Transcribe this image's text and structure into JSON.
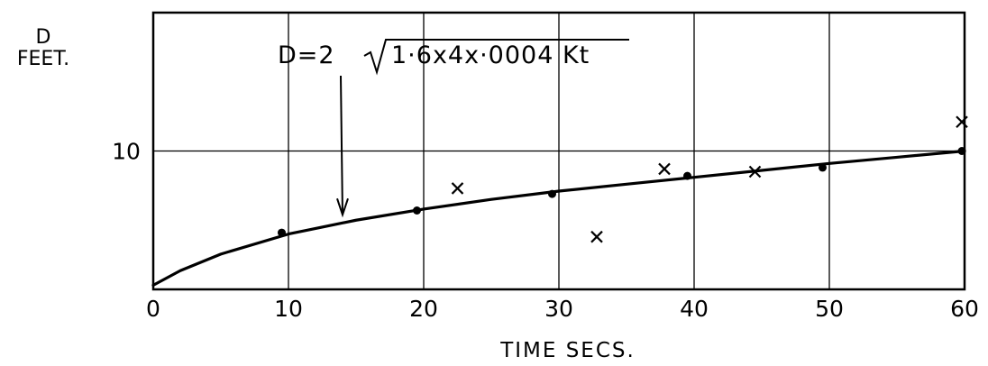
{
  "chart_data": {
    "type": "scatter",
    "xlabel": "TIME SECS.",
    "ylabel": [
      "D",
      "FEET."
    ],
    "xlim": [
      0,
      60
    ],
    "ylim": [
      0,
      20
    ],
    "x_ticks": [
      0,
      10,
      20,
      30,
      40,
      50,
      60
    ],
    "x_tick_labels": [
      "0",
      "10",
      "20",
      "30",
      "40",
      "50",
      "60"
    ],
    "y_ticks": [
      0,
      10
    ],
    "y_tick_labels": [
      "0",
      "10"
    ],
    "grid": true,
    "annotation": {
      "text_prefix": "D=2",
      "text_radicand": "1·6x4x·0004 Kt",
      "arrow_x": 14,
      "arrow_y": 5
    },
    "series": [
      {
        "marker": "dot",
        "x": [
          9.5,
          19.5,
          29.5,
          39.5,
          49.5,
          59.8
        ],
        "y": [
          4.1,
          5.7,
          6.9,
          8.2,
          8.8,
          10.0
        ]
      },
      {
        "marker": "cross",
        "x": [
          22.5,
          32.8,
          37.8,
          44.5,
          59.8
        ],
        "y": [
          7.3,
          3.8,
          8.7,
          8.5,
          12.1
        ]
      },
      {
        "marker": "line",
        "formula": "D = 2*sqrt(1.6*4*0.0004*K*t)",
        "x": [
          0,
          2,
          5,
          10,
          15,
          20,
          25,
          30,
          35,
          40,
          45,
          50,
          55,
          60
        ],
        "y": [
          0.3,
          1.35,
          2.55,
          4.0,
          5.0,
          5.8,
          6.5,
          7.1,
          7.6,
          8.1,
          8.6,
          9.1,
          9.55,
          10.0
        ]
      }
    ]
  }
}
